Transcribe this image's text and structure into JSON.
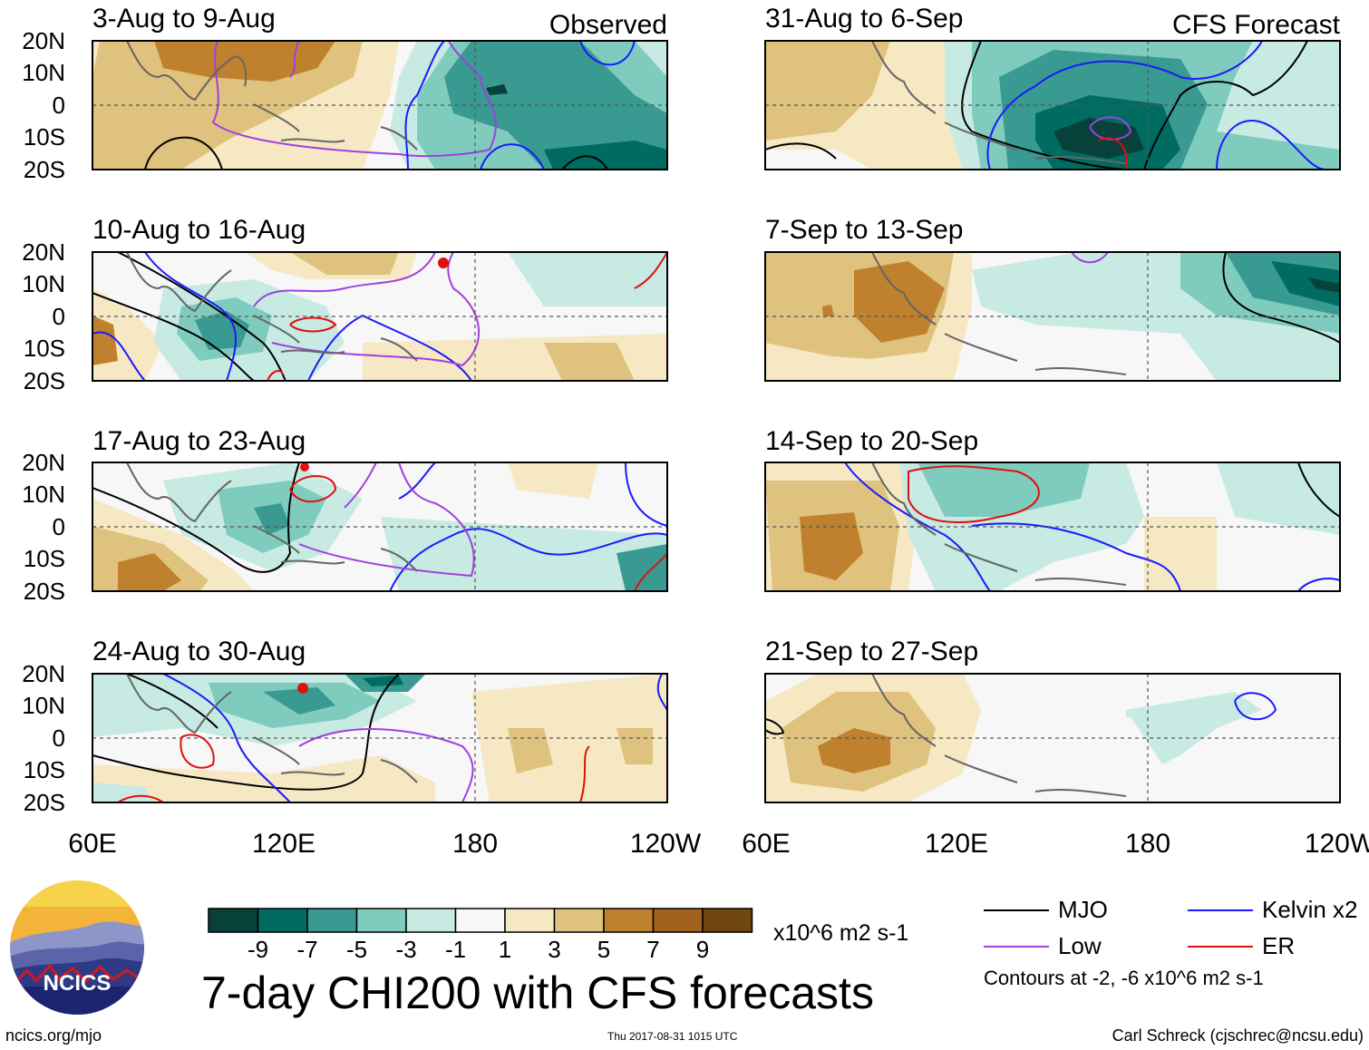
{
  "title": "7-day CHI200 with CFS forecasts",
  "units": "x10^6 m2 s-1",
  "column_labels": {
    "left": "Observed",
    "right": "CFS Forecast"
  },
  "panels": [
    {
      "id": "p1",
      "title": "3-Aug to 9-Aug"
    },
    {
      "id": "p2",
      "title": "31-Aug to 6-Sep"
    },
    {
      "id": "p3",
      "title": "10-Aug to 16-Aug"
    },
    {
      "id": "p4",
      "title": "7-Sep to 13-Sep"
    },
    {
      "id": "p5",
      "title": "17-Aug to 23-Aug"
    },
    {
      "id": "p6",
      "title": "14-Sep to 20-Sep"
    },
    {
      "id": "p7",
      "title": "24-Aug to 30-Aug"
    },
    {
      "id": "p8",
      "title": "21-Sep to 27-Sep"
    }
  ],
  "lat_labels": [
    "20N",
    "10N",
    "0",
    "10S",
    "20S"
  ],
  "lon_labels": [
    "60E",
    "120E",
    "180",
    "120W"
  ],
  "colorbar": {
    "colors": [
      "#08403a",
      "#006b60",
      "#389a90",
      "#7fccbe",
      "#c7eae3",
      "#f7f7f7",
      "#f6e8c3",
      "#dfc27d",
      "#bf812d",
      "#a0621d",
      "#6f4510"
    ],
    "tick_labels": [
      "-9",
      "-7",
      "-5",
      "-3",
      "-1",
      "1",
      "3",
      "5",
      "7",
      "9"
    ]
  },
  "legend": {
    "items": [
      {
        "label": "MJO",
        "color": "#000000"
      },
      {
        "label": "Kelvin x2",
        "color": "#1a1aff"
      },
      {
        "label": "Low",
        "color": "#a040e0"
      },
      {
        "label": "ER",
        "color": "#e01010"
      }
    ],
    "contour_note": "Contours at -2, -6 x10^6 m2 s-1"
  },
  "logo": {
    "text": "NCICS"
  },
  "footer": {
    "url": "ncics.org/mjo",
    "timestamp": "Thu 2017-08-31 1015 UTC",
    "credit": "Carl Schreck (cjschrec@ncsu.edu)"
  }
}
